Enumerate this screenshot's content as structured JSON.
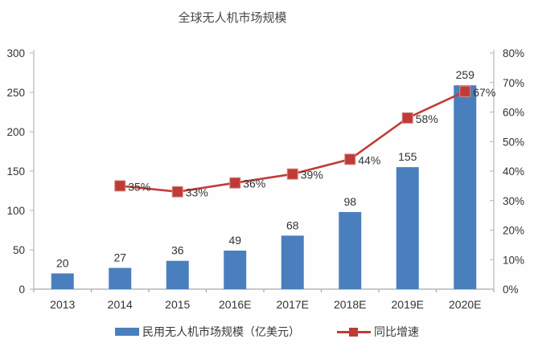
{
  "title": "全球无人机市场规模",
  "legend": {
    "bar_label": "民用无人机市场规模（亿美元）",
    "line_label": "同比增速"
  },
  "colors": {
    "bar": "#4a7fbe",
    "line": "#c13c38",
    "marker": "#bf3b37",
    "text": "#3a3a3a",
    "axis_line": "#bdbdbd",
    "tick_text": "#333333"
  },
  "chart_data": {
    "type": "bar",
    "subtype": "bar+line combo",
    "title": "全球无人机市场规模",
    "categories": [
      "2013",
      "2014",
      "2015",
      "2016E",
      "2017E",
      "2018E",
      "2019E",
      "2020E"
    ],
    "series": [
      {
        "name": "民用无人机市场规模（亿美元）",
        "type": "bar",
        "axis": "left",
        "values": [
          20,
          27,
          36,
          49,
          68,
          98,
          155,
          259
        ],
        "data_labels": [
          "20",
          "27",
          "36",
          "49",
          "68",
          "98",
          "155",
          "259"
        ]
      },
      {
        "name": "同比增速",
        "type": "line",
        "axis": "right",
        "values": [
          null,
          35,
          33,
          36,
          39,
          44,
          58,
          67
        ],
        "data_labels": [
          "",
          "35%",
          "33%",
          "36%",
          "39%",
          "44%",
          "58%",
          "67%"
        ]
      }
    ],
    "left_axis": {
      "min": 0,
      "max": 300,
      "step": 50,
      "tick_labels": [
        "0",
        "50",
        "100",
        "150",
        "200",
        "250",
        "300"
      ]
    },
    "right_axis": {
      "min": 0,
      "max": 80,
      "step": 10,
      "tick_labels": [
        "0%",
        "10%",
        "20%",
        "30%",
        "40%",
        "50%",
        "60%",
        "70%",
        "80%"
      ]
    },
    "grid": false,
    "legend_position": "bottom"
  }
}
